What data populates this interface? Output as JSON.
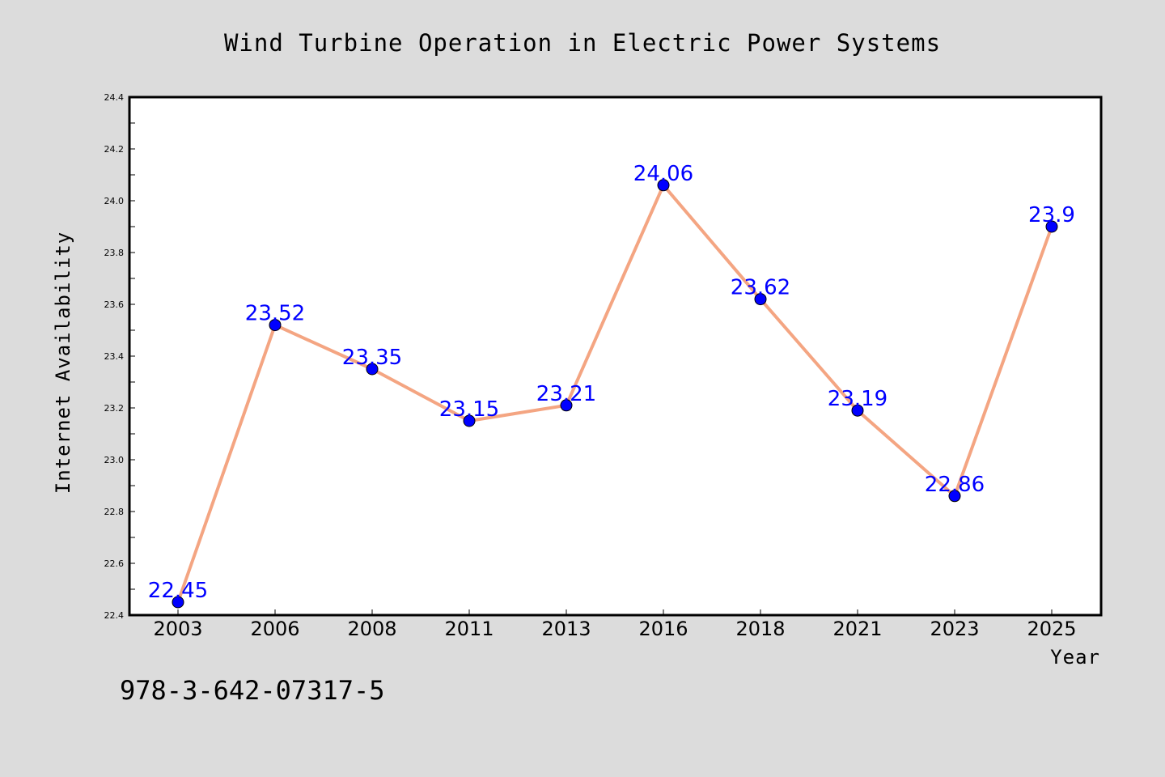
{
  "chart_data": {
    "type": "line",
    "title": "Wind Turbine Operation in Electric Power Systems",
    "xlabel": "Year",
    "ylabel": "Internet Availability",
    "categories": [
      "2003",
      "2006",
      "2008",
      "2011",
      "2013",
      "2016",
      "2018",
      "2021",
      "2023",
      "2025"
    ],
    "series": [
      {
        "values": [
          22.45,
          23.52,
          23.35,
          23.15,
          23.21,
          24.06,
          23.62,
          23.19,
          22.86,
          23.9
        ],
        "value_labels": [
          "22.45",
          "23.52",
          "23.35",
          "23.15",
          "23.21",
          "24.06",
          "23.62",
          "23.19",
          "22.86",
          "23.9"
        ],
        "line_color": "#f4a582",
        "marker_color": "#0000ff",
        "label_color": "#0000ff"
      }
    ],
    "ylim": [
      22.4,
      24.4
    ],
    "yticks": [
      "22.4",
      "22.6",
      "22.8",
      "23.0",
      "23.2",
      "23.4",
      "23.6",
      "23.8",
      "24.0",
      "24.2",
      "24.4"
    ],
    "grid": false,
    "legend": "none"
  },
  "footer": {
    "isbn": "978-3-642-07317-5"
  },
  "colors": {
    "background": "#dcdcdc",
    "plot_background": "#ffffff"
  }
}
